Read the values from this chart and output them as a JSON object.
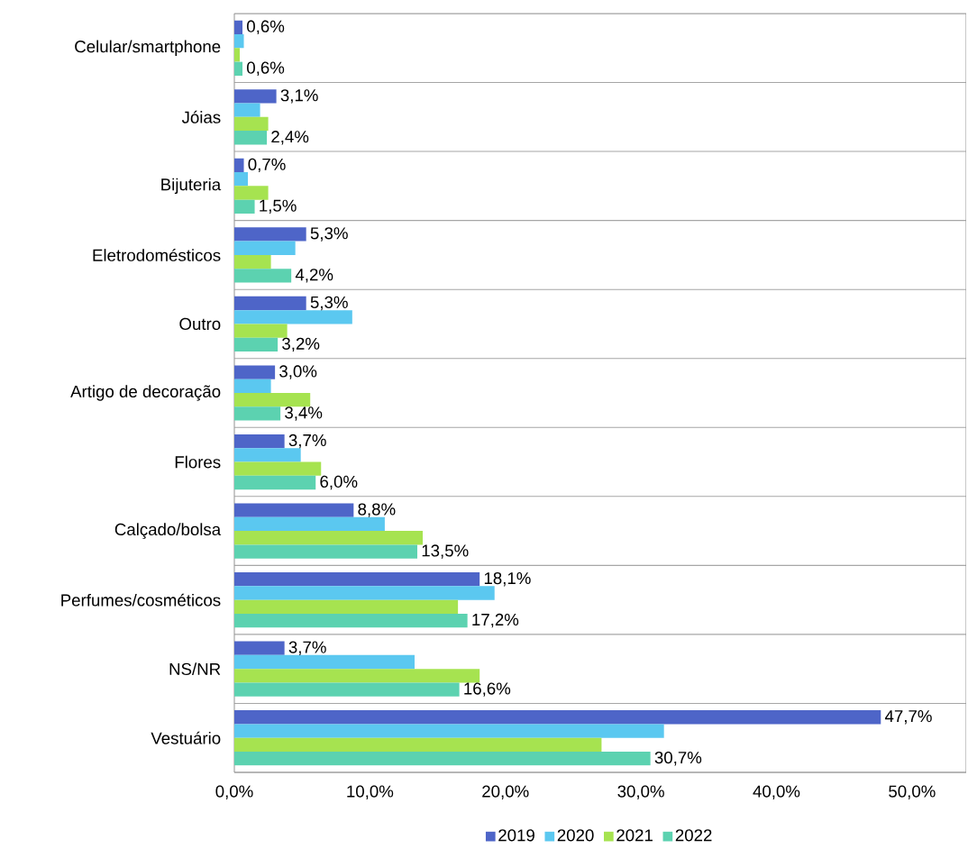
{
  "chart_data": {
    "type": "bar",
    "orientation": "horizontal",
    "categories": [
      "Celular/smartphone",
      "Jóias",
      "Bijuteria",
      "Eletrodomésticos",
      "Outro",
      "Artigo de decoração",
      "Flores",
      "Calçado/bolsa",
      "Perfumes/cosméticos",
      "NS/NR",
      "Vestuário"
    ],
    "series": [
      {
        "name": "2019",
        "color": "#4e65c8",
        "values": [
          0.6,
          3.1,
          0.7,
          5.3,
          5.3,
          3.0,
          3.7,
          8.8,
          18.1,
          3.7,
          47.7
        ],
        "value_labels": [
          "0,6%",
          "3,1%",
          "0,7%",
          "5,3%",
          "5,3%",
          "3,0%",
          "3,7%",
          "8,8%",
          "18,1%",
          "3,7%",
          "47,7%"
        ]
      },
      {
        "name": "2020",
        "color": "#5bc8f0",
        "values": [
          0.7,
          1.9,
          1.0,
          4.5,
          8.7,
          2.7,
          4.9,
          11.1,
          19.2,
          13.3,
          31.7
        ]
      },
      {
        "name": "2021",
        "color": "#a6e350",
        "values": [
          0.4,
          2.5,
          2.5,
          2.7,
          3.9,
          5.6,
          6.4,
          13.9,
          16.5,
          18.1,
          27.1
        ]
      },
      {
        "name": "2022",
        "color": "#5cd2b0",
        "values": [
          0.6,
          2.4,
          1.5,
          4.2,
          3.2,
          3.4,
          6.0,
          13.5,
          17.2,
          16.6,
          30.7
        ],
        "value_labels": [
          "0,6%",
          "2,4%",
          "1,5%",
          "4,2%",
          "3,2%",
          "3,4%",
          "6,0%",
          "13,5%",
          "17,2%",
          "16,6%",
          "30,7%"
        ]
      }
    ],
    "xlim": [
      0,
      54
    ],
    "xticks": [
      {
        "value": 0,
        "label": "0,0%"
      },
      {
        "value": 10,
        "label": "10,0%"
      },
      {
        "value": 20,
        "label": "20,0%"
      },
      {
        "value": 30,
        "label": "30,0%"
      },
      {
        "value": 40,
        "label": "40,0%"
      },
      {
        "value": 50,
        "label": "50,0%"
      }
    ],
    "grid": "y",
    "legend": "bottom"
  }
}
